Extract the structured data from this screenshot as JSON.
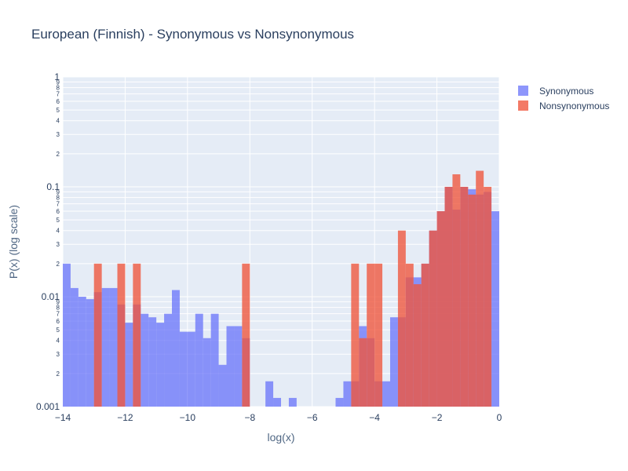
{
  "chart_data": {
    "type": "bar",
    "title": "European (Finnish) - Synonymous vs Nonsynonymous",
    "xlabel": "log(x)",
    "ylabel": "P(x) (log scale)",
    "xlim": [
      -14,
      0
    ],
    "ylim": [
      0.001,
      1
    ],
    "yscale": "log",
    "bin_width": 0.25,
    "x_ticks": [
      "−14",
      "−12",
      "−10",
      "−8",
      "−6",
      "−4",
      "−2",
      "0"
    ],
    "y_ticks_major": [
      "0.001",
      "0.01",
      "0.1",
      "1"
    ],
    "y_ticks_minor": [
      "2",
      "3",
      "4",
      "5",
      "6",
      "7",
      "8",
      "9"
    ],
    "barmode": "overlay",
    "grid": true,
    "legend_position": "top-right",
    "series": [
      {
        "name": "Synonymous",
        "color": "#636efa",
        "bins": [
          {
            "x0": -14.0,
            "y": 0.02
          },
          {
            "x0": -13.75,
            "y": 0.012
          },
          {
            "x0": -13.5,
            "y": 0.01
          },
          {
            "x0": -13.25,
            "y": 0.0095
          },
          {
            "x0": -13.0,
            "y": 0.011
          },
          {
            "x0": -12.75,
            "y": 0.012
          },
          {
            "x0": -12.5,
            "y": 0.012
          },
          {
            "x0": -12.25,
            "y": 0.0085
          },
          {
            "x0": -12.0,
            "y": 0.0058
          },
          {
            "x0": -11.75,
            "y": 0.0085
          },
          {
            "x0": -11.5,
            "y": 0.007
          },
          {
            "x0": -11.25,
            "y": 0.0065
          },
          {
            "x0": -11.0,
            "y": 0.0058
          },
          {
            "x0": -10.75,
            "y": 0.007
          },
          {
            "x0": -10.5,
            "y": 0.0115
          },
          {
            "x0": -10.25,
            "y": 0.0048
          },
          {
            "x0": -10.0,
            "y": 0.0048
          },
          {
            "x0": -9.75,
            "y": 0.007
          },
          {
            "x0": -9.5,
            "y": 0.0042
          },
          {
            "x0": -9.25,
            "y": 0.007
          },
          {
            "x0": -9.0,
            "y": 0.0024
          },
          {
            "x0": -8.75,
            "y": 0.0054
          },
          {
            "x0": -8.5,
            "y": 0.0054
          },
          {
            "x0": -8.25,
            "y": 0.0042
          },
          {
            "x0": -7.5,
            "y": 0.0017
          },
          {
            "x0": -7.25,
            "y": 0.0012
          },
          {
            "x0": -6.75,
            "y": 0.0012
          },
          {
            "x0": -5.25,
            "y": 0.0012
          },
          {
            "x0": -5.0,
            "y": 0.0017
          },
          {
            "x0": -4.75,
            "y": 0.0017
          },
          {
            "x0": -4.5,
            "y": 0.0054
          },
          {
            "x0": -4.25,
            "y": 0.0042
          },
          {
            "x0": -4.0,
            "y": 0.0017
          },
          {
            "x0": -3.75,
            "y": 0.0017
          },
          {
            "x0": -3.5,
            "y": 0.0065
          },
          {
            "x0": -3.25,
            "y": 0.0065
          },
          {
            "x0": -3.0,
            "y": 0.015
          },
          {
            "x0": -2.75,
            "y": 0.015
          },
          {
            "x0": -2.5,
            "y": 0.02
          },
          {
            "x0": -2.25,
            "y": 0.04
          },
          {
            "x0": -2.0,
            "y": 0.06
          },
          {
            "x0": -1.75,
            "y": 0.1
          },
          {
            "x0": -1.5,
            "y": 0.062
          },
          {
            "x0": -1.25,
            "y": 0.1
          },
          {
            "x0": -1.0,
            "y": 0.095
          },
          {
            "x0": -0.75,
            "y": 0.085
          },
          {
            "x0": -0.5,
            "y": 0.09
          },
          {
            "x0": -0.25,
            "y": 0.06
          }
        ]
      },
      {
        "name": "Nonsynonymous",
        "color": "#ef553b",
        "bins": [
          {
            "x0": -13.0,
            "y": 0.02
          },
          {
            "x0": -12.25,
            "y": 0.02
          },
          {
            "x0": -11.75,
            "y": 0.02
          },
          {
            "x0": -8.25,
            "y": 0.02
          },
          {
            "x0": -4.5,
            "y": 0.0042
          },
          {
            "x0": -4.75,
            "y": 0.02
          },
          {
            "x0": -4.25,
            "y": 0.02
          },
          {
            "x0": -4.0,
            "y": 0.02
          },
          {
            "x0": -3.25,
            "y": 0.04
          },
          {
            "x0": -3.0,
            "y": 0.02
          },
          {
            "x0": -2.75,
            "y": 0.013
          },
          {
            "x0": -2.5,
            "y": 0.02
          },
          {
            "x0": -2.25,
            "y": 0.04
          },
          {
            "x0": -2.0,
            "y": 0.06
          },
          {
            "x0": -1.75,
            "y": 0.1
          },
          {
            "x0": -1.5,
            "y": 0.13
          },
          {
            "x0": -1.25,
            "y": 0.1
          },
          {
            "x0": -1.0,
            "y": 0.085
          },
          {
            "x0": -0.75,
            "y": 0.14
          },
          {
            "x0": -0.5,
            "y": 0.1
          }
        ]
      }
    ]
  }
}
